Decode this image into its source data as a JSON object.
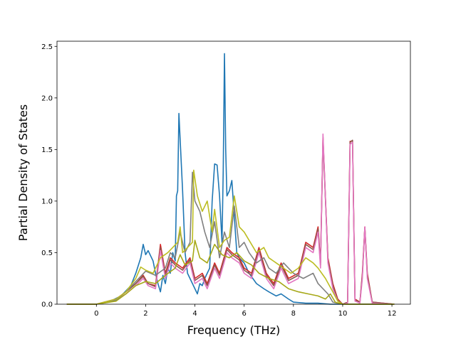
{
  "chart_data": {
    "type": "line",
    "title": "",
    "xlabel": "Frequency (THz)",
    "ylabel": "Partial Density of States",
    "xlim": [
      -1.6,
      12.75
    ],
    "ylim": [
      0.0,
      2.55
    ],
    "xticks": [
      0,
      2,
      4,
      6,
      8,
      10,
      12
    ],
    "xtick_labels": [
      "0",
      "2",
      "4",
      "6",
      "8",
      "10",
      "12"
    ],
    "yticks": [
      0.0,
      0.5,
      1.0,
      1.5,
      2.0,
      2.5
    ],
    "ytick_labels": [
      "0.0",
      "0.5",
      "1.0",
      "1.5",
      "2.0",
      "2.5"
    ],
    "grid": false,
    "legend": "none",
    "series": [
      {
        "color": "#1f77b4",
        "x": [
          -1.2,
          0,
          0.5,
          1.0,
          1.4,
          1.6,
          1.8,
          1.9,
          2.0,
          2.1,
          2.3,
          2.4,
          2.5,
          2.6,
          2.7,
          2.8,
          2.9,
          3.0,
          3.1,
          3.2,
          3.25,
          3.3,
          3.35,
          3.4,
          3.5,
          3.6,
          3.7,
          3.8,
          3.9,
          4.0,
          4.1,
          4.2,
          4.3,
          4.4,
          4.5,
          4.6,
          4.7,
          4.8,
          4.9,
          5.0,
          5.1,
          5.15,
          5.2,
          5.25,
          5.3,
          5.4,
          5.5,
          5.6,
          5.7,
          5.8,
          6.0,
          6.2,
          6.5,
          6.8,
          7.0,
          7.3,
          7.5,
          7.8,
          8.0,
          8.5,
          9.0,
          9.5,
          10.0,
          12.1
        ],
        "y": [
          0,
          0,
          0.02,
          0.08,
          0.18,
          0.3,
          0.45,
          0.58,
          0.48,
          0.52,
          0.42,
          0.3,
          0.2,
          0.12,
          0.28,
          0.2,
          0.35,
          0.3,
          0.5,
          0.42,
          1.05,
          1.1,
          1.85,
          1.6,
          1.1,
          0.5,
          0.3,
          0.25,
          0.2,
          0.15,
          0.1,
          0.2,
          0.18,
          0.25,
          0.3,
          0.35,
          1.0,
          1.36,
          1.35,
          1.05,
          0.6,
          1.3,
          2.43,
          1.5,
          1.05,
          1.1,
          1.2,
          0.85,
          0.5,
          0.45,
          0.4,
          0.3,
          0.2,
          0.15,
          0.12,
          0.08,
          0.1,
          0.05,
          0.02,
          0.01,
          0.01,
          0.0,
          0.0,
          0
        ]
      },
      {
        "color": "#d62728",
        "x": [
          -1.2,
          0,
          0.8,
          1.2,
          1.6,
          1.9,
          2.1,
          2.4,
          2.6,
          2.8,
          3.0,
          3.2,
          3.5,
          3.8,
          4.0,
          4.3,
          4.5,
          4.8,
          5.0,
          5.3,
          5.5,
          5.8,
          6.0,
          6.3,
          6.6,
          6.9,
          7.2,
          7.5,
          7.8,
          8.2,
          8.5,
          8.8,
          9.0,
          9.1,
          9.2,
          9.4,
          9.6,
          9.8,
          10.0,
          10.2,
          10.3,
          10.4,
          10.5,
          10.7,
          10.8,
          10.9,
          11.0,
          11.2,
          12.1
        ],
        "y": [
          0,
          0,
          0.05,
          0.12,
          0.2,
          0.28,
          0.2,
          0.18,
          0.58,
          0.3,
          0.45,
          0.4,
          0.35,
          0.45,
          0.25,
          0.3,
          0.2,
          0.4,
          0.3,
          0.55,
          0.5,
          0.45,
          0.35,
          0.3,
          0.55,
          0.3,
          0.2,
          0.4,
          0.25,
          0.3,
          0.6,
          0.55,
          0.75,
          0.4,
          1.62,
          0.45,
          0.2,
          0.05,
          0.0,
          0.02,
          1.58,
          1.58,
          0.05,
          0.02,
          0.3,
          0.75,
          0.3,
          0.02,
          0
        ]
      },
      {
        "color": "#8c564b",
        "x": [
          -1.2,
          0,
          0.8,
          1.2,
          1.6,
          1.9,
          2.1,
          2.4,
          2.6,
          2.8,
          3.0,
          3.2,
          3.5,
          3.8,
          4.0,
          4.3,
          4.5,
          4.8,
          5.0,
          5.3,
          5.5,
          5.8,
          6.0,
          6.3,
          6.6,
          6.9,
          7.2,
          7.5,
          7.8,
          8.2,
          8.5,
          8.8,
          9.0,
          9.1,
          9.2,
          9.4,
          9.6,
          9.8,
          10.0,
          10.2,
          10.3,
          10.4,
          10.5,
          10.7,
          10.8,
          10.9,
          11.0,
          11.2,
          12.1
        ],
        "y": [
          0,
          0,
          0.05,
          0.12,
          0.2,
          0.27,
          0.2,
          0.17,
          0.55,
          0.28,
          0.43,
          0.38,
          0.33,
          0.43,
          0.23,
          0.28,
          0.18,
          0.38,
          0.28,
          0.53,
          0.48,
          0.43,
          0.33,
          0.28,
          0.53,
          0.28,
          0.18,
          0.38,
          0.23,
          0.28,
          0.58,
          0.53,
          0.73,
          0.38,
          1.6,
          0.43,
          0.18,
          0.04,
          0.0,
          0.02,
          1.57,
          1.59,
          0.04,
          0.02,
          0.28,
          0.74,
          0.28,
          0.02,
          0
        ]
      },
      {
        "color": "#e377c2",
        "x": [
          -1.2,
          0,
          0.8,
          1.2,
          1.6,
          1.9,
          2.1,
          2.4,
          2.6,
          2.8,
          3.0,
          3.2,
          3.5,
          3.8,
          4.0,
          4.3,
          4.5,
          4.8,
          5.0,
          5.3,
          5.5,
          5.8,
          6.0,
          6.3,
          6.6,
          6.9,
          7.2,
          7.5,
          7.8,
          8.2,
          8.5,
          8.8,
          9.0,
          9.1,
          9.2,
          9.4,
          9.6,
          9.8,
          10.0,
          10.2,
          10.3,
          10.4,
          10.5,
          10.7,
          10.8,
          10.9,
          11.0,
          11.2,
          12.1
        ],
        "y": [
          0,
          0,
          0.04,
          0.1,
          0.18,
          0.25,
          0.18,
          0.15,
          0.52,
          0.25,
          0.4,
          0.35,
          0.3,
          0.4,
          0.2,
          0.25,
          0.15,
          0.35,
          0.25,
          0.5,
          0.45,
          0.4,
          0.3,
          0.25,
          0.5,
          0.25,
          0.15,
          0.35,
          0.2,
          0.25,
          0.55,
          0.5,
          0.7,
          0.35,
          1.65,
          0.4,
          0.15,
          0.03,
          0.0,
          0.01,
          1.55,
          1.57,
          0.03,
          0.01,
          0.25,
          0.75,
          0.25,
          0.01,
          0
        ]
      },
      {
        "color": "#7f7f7f",
        "x": [
          -1.2,
          0,
          0.8,
          1.2,
          1.6,
          2.0,
          2.4,
          2.8,
          3.0,
          3.2,
          3.4,
          3.6,
          3.8,
          3.9,
          4.0,
          4.2,
          4.4,
          4.6,
          4.8,
          5.0,
          5.2,
          5.4,
          5.6,
          5.8,
          6.0,
          6.2,
          6.5,
          6.8,
          7.0,
          7.3,
          7.6,
          8.0,
          8.4,
          8.8,
          9.0,
          9.2,
          9.4,
          9.6,
          10.0,
          12.1
        ],
        "y": [
          0,
          0,
          0.04,
          0.12,
          0.22,
          0.32,
          0.28,
          0.35,
          0.5,
          0.45,
          0.7,
          0.5,
          0.6,
          1.28,
          1.0,
          0.9,
          0.7,
          0.55,
          0.8,
          0.45,
          0.7,
          0.55,
          0.95,
          0.55,
          0.6,
          0.5,
          0.4,
          0.45,
          0.35,
          0.3,
          0.4,
          0.3,
          0.25,
          0.3,
          0.2,
          0.15,
          0.1,
          0.02,
          0.0,
          0
        ]
      },
      {
        "color": "#bcbd22",
        "x": [
          -1.2,
          0,
          0.8,
          1.2,
          1.6,
          1.8,
          2.0,
          2.3,
          2.6,
          2.9,
          3.1,
          3.3,
          3.4,
          3.5,
          3.7,
          3.9,
          3.95,
          4.1,
          4.3,
          4.5,
          4.7,
          4.8,
          5.0,
          5.2,
          5.4,
          5.6,
          5.8,
          6.0,
          6.2,
          6.5,
          6.8,
          7.0,
          7.3,
          7.6,
          7.9,
          8.2,
          8.5,
          8.8,
          9.0,
          9.3,
          9.6,
          9.8,
          10.0,
          12.1
        ],
        "y": [
          0,
          0,
          0.05,
          0.12,
          0.25,
          0.36,
          0.33,
          0.3,
          0.45,
          0.5,
          0.55,
          0.6,
          0.75,
          0.5,
          0.55,
          0.6,
          1.3,
          1.05,
          0.9,
          1.0,
          0.7,
          0.92,
          0.55,
          0.62,
          0.65,
          1.05,
          0.75,
          0.7,
          0.62,
          0.5,
          0.55,
          0.45,
          0.4,
          0.35,
          0.3,
          0.35,
          0.45,
          0.4,
          0.35,
          0.25,
          0.12,
          0.03,
          0.0,
          0
        ]
      },
      {
        "color": "#a6a817",
        "x": [
          -1.2,
          0,
          0.8,
          1.2,
          1.6,
          2.0,
          2.4,
          2.8,
          3.2,
          3.4,
          3.6,
          3.9,
          4.0,
          4.2,
          4.5,
          4.8,
          5.1,
          5.4,
          5.7,
          6.0,
          6.3,
          6.6,
          7.0,
          7.4,
          7.8,
          8.2,
          8.6,
          9.0,
          9.3,
          9.5,
          9.7,
          10.0,
          12.1
        ],
        "y": [
          0,
          0,
          0.03,
          0.1,
          0.18,
          0.22,
          0.2,
          0.28,
          0.35,
          0.48,
          0.38,
          0.42,
          0.62,
          0.45,
          0.4,
          0.58,
          0.48,
          0.45,
          0.5,
          0.42,
          0.38,
          0.3,
          0.25,
          0.22,
          0.15,
          0.12,
          0.1,
          0.08,
          0.05,
          0.1,
          0.02,
          0.0,
          0
        ]
      }
    ]
  }
}
